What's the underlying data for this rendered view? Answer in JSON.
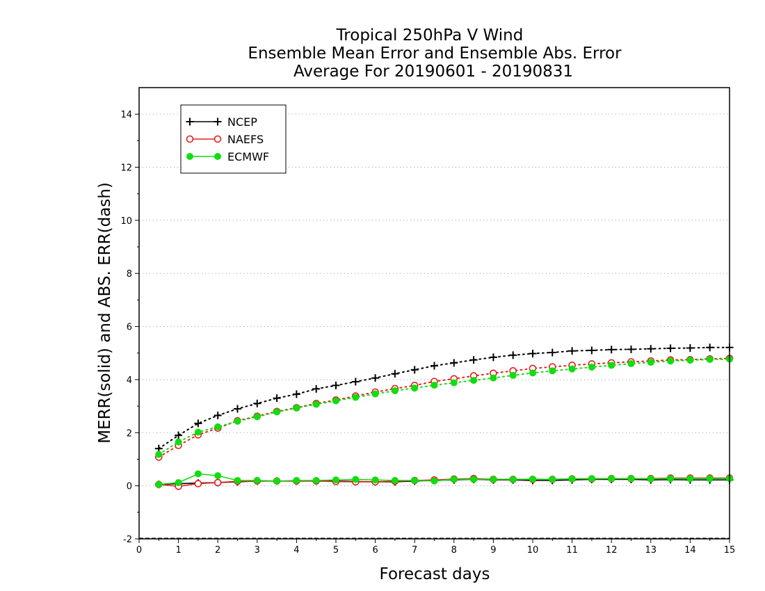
{
  "chart_data": {
    "type": "line",
    "title": [
      "Tropical 250hPa V Wind",
      "Ensemble Mean Error and Ensemble Abs. Error",
      "Average For 20190601 - 20190831"
    ],
    "xlabel": "Forecast days",
    "ylabel": "MERR(solid) and ABS. ERR(dash)",
    "xlim": [
      0,
      15
    ],
    "ylim": [
      -2,
      15
    ],
    "xticks": [
      0,
      1,
      2,
      3,
      4,
      5,
      6,
      7,
      8,
      9,
      10,
      11,
      12,
      13,
      14,
      15
    ],
    "yticks": [
      -2,
      0,
      2,
      4,
      6,
      8,
      10,
      12,
      14
    ],
    "grid": "horizontal dotted",
    "legend_position": "top-left",
    "x": [
      0.5,
      1,
      1.5,
      2,
      2.5,
      3,
      3.5,
      4,
      4.5,
      5,
      5.5,
      6,
      6.5,
      7,
      7.5,
      8,
      8.5,
      9,
      9.5,
      10,
      10.5,
      11,
      11.5,
      12,
      12.5,
      13,
      13.5,
      14,
      14.5,
      15
    ],
    "series": [
      {
        "name": "NCEP",
        "color": "#000000",
        "marker": "plus",
        "abs_error": [
          1.4,
          1.9,
          2.35,
          2.65,
          2.9,
          3.1,
          3.3,
          3.45,
          3.65,
          3.78,
          3.92,
          4.06,
          4.22,
          4.37,
          4.52,
          4.63,
          4.74,
          4.84,
          4.92,
          4.98,
          5.02,
          5.08,
          5.1,
          5.13,
          5.14,
          5.16,
          5.18,
          5.19,
          5.21,
          5.21
        ],
        "mean_error": [
          0.05,
          0.08,
          0.1,
          0.12,
          0.15,
          0.18,
          0.18,
          0.18,
          0.18,
          0.18,
          0.16,
          0.15,
          0.15,
          0.18,
          0.2,
          0.22,
          0.24,
          0.22,
          0.22,
          0.2,
          0.2,
          0.22,
          0.24,
          0.24,
          0.24,
          0.22,
          0.23,
          0.22,
          0.22,
          0.22
        ]
      },
      {
        "name": "NAEFS",
        "color": "#e0201c",
        "marker": "open-circle",
        "abs_error": [
          1.08,
          1.52,
          1.92,
          2.17,
          2.45,
          2.62,
          2.8,
          2.94,
          3.1,
          3.23,
          3.38,
          3.53,
          3.66,
          3.78,
          3.93,
          4.03,
          4.14,
          4.24,
          4.33,
          4.42,
          4.48,
          4.54,
          4.59,
          4.63,
          4.67,
          4.7,
          4.74,
          4.75,
          4.78,
          4.8
        ],
        "mean_error": [
          0.05,
          -0.02,
          0.08,
          0.12,
          0.17,
          0.18,
          0.18,
          0.18,
          0.18,
          0.16,
          0.15,
          0.15,
          0.17,
          0.2,
          0.22,
          0.25,
          0.27,
          0.24,
          0.24,
          0.24,
          0.24,
          0.26,
          0.26,
          0.27,
          0.27,
          0.27,
          0.29,
          0.29,
          0.29,
          0.29
        ]
      },
      {
        "name": "ECMWF",
        "color": "#11dd11",
        "marker": "filled-circle",
        "abs_error": [
          1.18,
          1.65,
          2.02,
          2.22,
          2.43,
          2.6,
          2.78,
          2.93,
          3.07,
          3.2,
          3.33,
          3.46,
          3.58,
          3.68,
          3.79,
          3.88,
          3.97,
          4.06,
          4.16,
          4.25,
          4.33,
          4.4,
          4.47,
          4.54,
          4.6,
          4.65,
          4.7,
          4.73,
          4.76,
          4.77
        ],
        "mean_error": [
          0.05,
          0.12,
          0.45,
          0.38,
          0.2,
          0.2,
          0.18,
          0.2,
          0.2,
          0.22,
          0.24,
          0.22,
          0.2,
          0.2,
          0.18,
          0.24,
          0.24,
          0.24,
          0.24,
          0.25,
          0.24,
          0.26,
          0.27,
          0.27,
          0.27,
          0.26,
          0.27,
          0.27,
          0.27,
          0.27
        ]
      }
    ]
  }
}
